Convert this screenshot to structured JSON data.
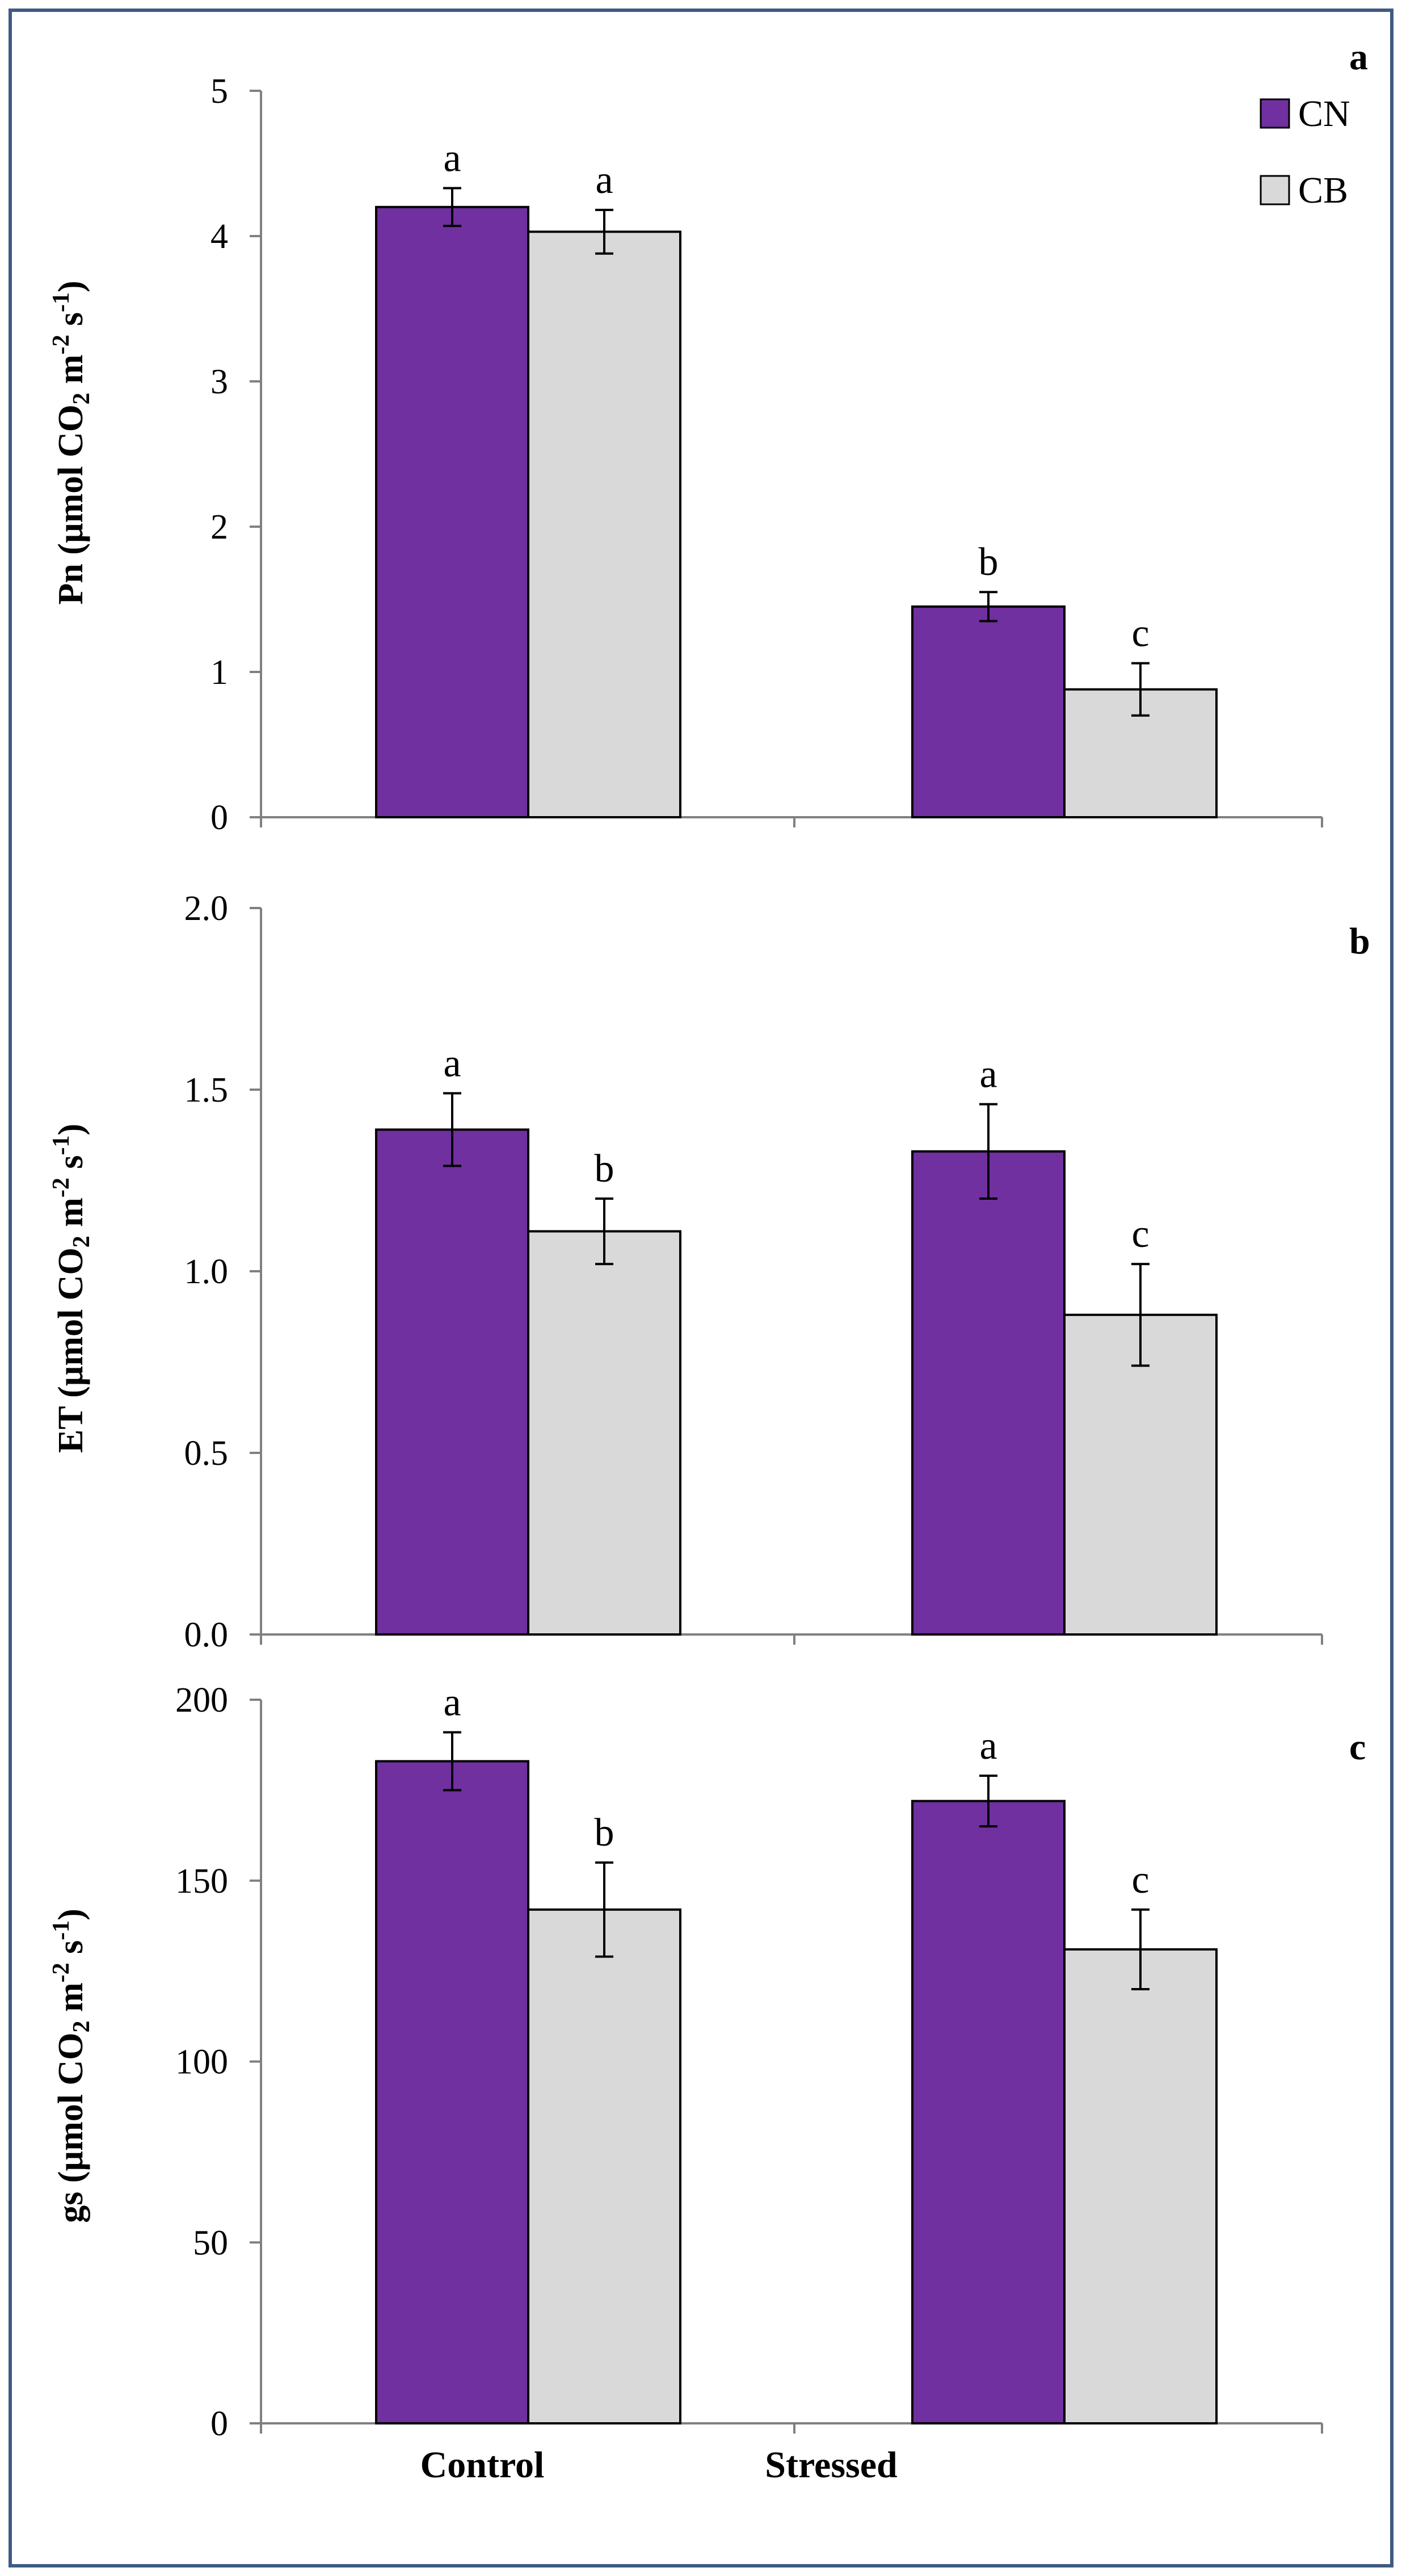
{
  "figure": {
    "border_color": "#3f5b82",
    "series_colors": {
      "CN": "#7030a0",
      "CB": "#d9d9d9"
    }
  },
  "legend": {
    "entries": [
      {
        "name": "CN",
        "color": "#7030a0"
      },
      {
        "name": "CB",
        "color": "#d9d9d9"
      }
    ]
  },
  "x_categories": [
    "Control",
    "Stressed"
  ],
  "chart_data": [
    {
      "type": "bar",
      "panel_label": "a",
      "ylabel": {
        "prefix": "Pn (µmol CO",
        "sub": "2",
        "middle": " m",
        "sup1": "-2",
        "s": " s",
        "sup2": "-1",
        "suffix": ")"
      },
      "ylim": [
        0,
        5
      ],
      "yticks": [
        0,
        1,
        2,
        3,
        4,
        5
      ],
      "ytick_labels": [
        "0",
        "1",
        "2",
        "3",
        "4",
        "5"
      ],
      "categories": [
        "Control",
        "Stressed"
      ],
      "series": [
        {
          "name": "CN",
          "values": [
            4.2,
            1.45
          ],
          "errors": [
            0.13,
            0.1
          ],
          "letters": [
            "a",
            "b"
          ]
        },
        {
          "name": "CB",
          "values": [
            4.03,
            0.88
          ],
          "errors": [
            0.15,
            0.18
          ],
          "letters": [
            "a",
            "c"
          ]
        }
      ]
    },
    {
      "type": "bar",
      "panel_label": "b",
      "ylabel": {
        "prefix": "ET (µmol CO",
        "sub": "2",
        "middle": " m",
        "sup1": "-2",
        "s": " s",
        "sup2": "-1",
        "suffix": ")"
      },
      "ylim": [
        0,
        2
      ],
      "yticks": [
        0,
        0.5,
        1,
        1.5,
        2
      ],
      "ytick_labels": [
        "0.0",
        "0.5",
        "1.0",
        "1.5",
        "2.0"
      ],
      "categories": [
        "Control",
        "Stressed"
      ],
      "series": [
        {
          "name": "CN",
          "values": [
            1.39,
            1.33
          ],
          "errors": [
            0.1,
            0.13
          ],
          "letters": [
            "a",
            "a"
          ]
        },
        {
          "name": "CB",
          "values": [
            1.11,
            0.88
          ],
          "errors": [
            0.09,
            0.14
          ],
          "letters": [
            "b",
            "c"
          ]
        }
      ]
    },
    {
      "type": "bar",
      "panel_label": "c",
      "ylabel": {
        "prefix": "gs (µmol CO",
        "sub": "2",
        "middle": " m",
        "sup1": "-2",
        "s": " s",
        "sup2": "-1",
        "suffix": ")"
      },
      "ylim": [
        0,
        200
      ],
      "yticks": [
        0,
        50,
        100,
        150,
        200
      ],
      "ytick_labels": [
        "0",
        "50",
        "100",
        "150",
        "200"
      ],
      "categories": [
        "Control",
        "Stressed"
      ],
      "series": [
        {
          "name": "CN",
          "values": [
            183,
            172
          ],
          "errors": [
            8,
            7
          ],
          "letters": [
            "a",
            "a"
          ]
        },
        {
          "name": "CB",
          "values": [
            142,
            131
          ],
          "errors": [
            13,
            11
          ],
          "letters": [
            "b",
            "c"
          ]
        }
      ]
    }
  ]
}
